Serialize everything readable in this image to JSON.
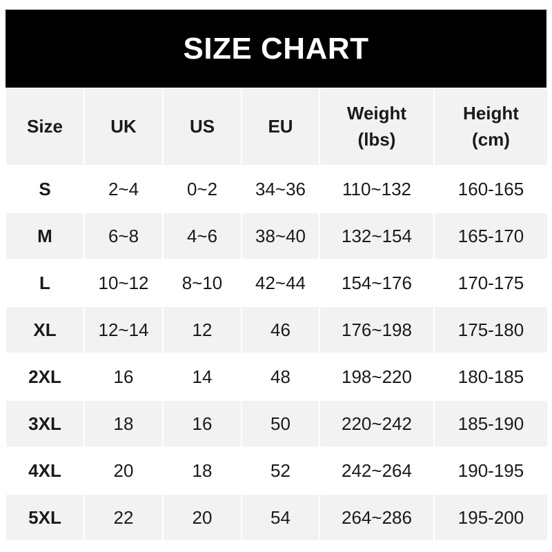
{
  "title": "SIZE CHART",
  "colors": {
    "title_bg": "#000000",
    "title_text": "#ffffff",
    "shaded_row": "#f2f2f2",
    "text": "#1a1a1a"
  },
  "columns": [
    {
      "line1": "Size",
      "line2": ""
    },
    {
      "line1": "UK",
      "line2": ""
    },
    {
      "line1": "US",
      "line2": ""
    },
    {
      "line1": "EU",
      "line2": ""
    },
    {
      "line1": "Weight",
      "line2": "(lbs)"
    },
    {
      "line1": "Height",
      "line2": "(cm)"
    }
  ],
  "rows": [
    [
      "S",
      "2~4",
      "0~2",
      "34~36",
      "110~132",
      "160-165"
    ],
    [
      "M",
      "6~8",
      "4~6",
      "38~40",
      "132~154",
      "165-170"
    ],
    [
      "L",
      "10~12",
      "8~10",
      "42~44",
      "154~176",
      "170-175"
    ],
    [
      "XL",
      "12~14",
      "12",
      "46",
      "176~198",
      "175-180"
    ],
    [
      "2XL",
      "16",
      "14",
      "48",
      "198~220",
      "180-185"
    ],
    [
      "3XL",
      "18",
      "16",
      "50",
      "220~242",
      "185-190"
    ],
    [
      "4XL",
      "20",
      "18",
      "52",
      "242~264",
      "190-195"
    ],
    [
      "5XL",
      "22",
      "20",
      "54",
      "264~286",
      "195-200"
    ]
  ]
}
